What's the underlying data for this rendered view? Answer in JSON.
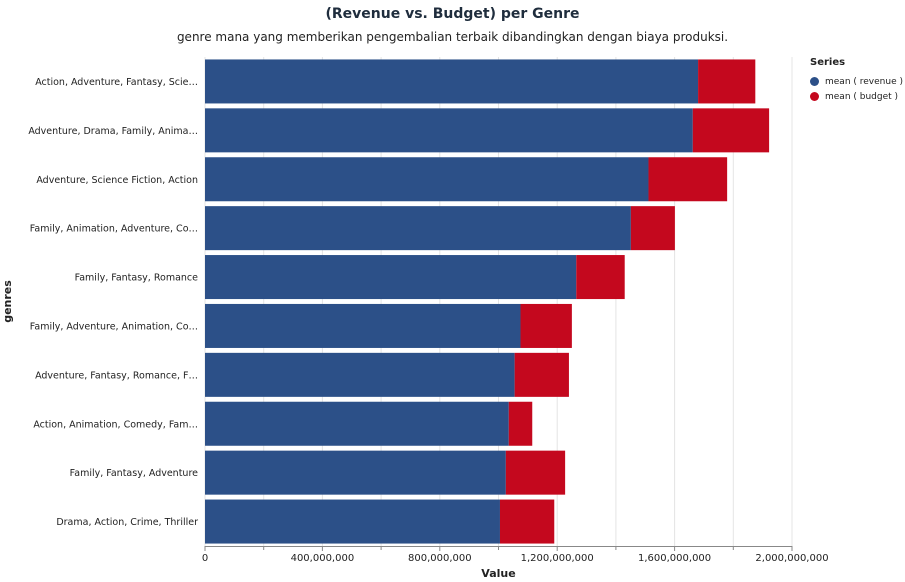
{
  "chart_data": {
    "type": "bar",
    "orientation": "horizontal",
    "stacked": true,
    "title": "(Revenue vs. Budget) per Genre",
    "subtitle": "genre mana yang memberikan pengembalian terbaik dibandingkan dengan biaya produksi.",
    "xlabel": "Value",
    "ylabel": "genres",
    "xlim": [
      0,
      2000000000
    ],
    "x_ticks": [
      "0",
      "400,000,000",
      "800,000,000",
      "1,200,000,000",
      "1,600,000,000",
      "2,000,000,000"
    ],
    "x_tick_values": [
      0,
      400000000,
      800000000,
      1200000000,
      1600000000,
      2000000000
    ],
    "grid": true,
    "legend_title": "Series",
    "legend_position": "top-right",
    "categories": [
      "Action, Adventure, Fantasy, Scie…",
      "Adventure, Drama, Family, Anima…",
      "Adventure, Science Fiction, Action",
      "Family, Animation, Adventure, Co…",
      "Family, Fantasy, Romance",
      "Family, Adventure, Animation, Co…",
      "Adventure, Fantasy, Romance, F…",
      "Action, Animation, Comedy, Fam…",
      "Family, Fantasy, Adventure",
      "Drama, Action, Crime, Thriller"
    ],
    "series": [
      {
        "name": "mean ( revenue )",
        "color": "#2c5088",
        "values": [
          1680000000,
          1662000000,
          1511000000,
          1451000000,
          1265000000,
          1075000000,
          1055000000,
          1035000000,
          1025000000,
          1005000000
        ]
      },
      {
        "name": "mean ( budget )",
        "color": "#c4081e",
        "values": [
          195000000,
          260000000,
          268000000,
          150000000,
          165000000,
          175000000,
          185000000,
          80000000,
          202000000,
          185000000
        ]
      }
    ]
  }
}
